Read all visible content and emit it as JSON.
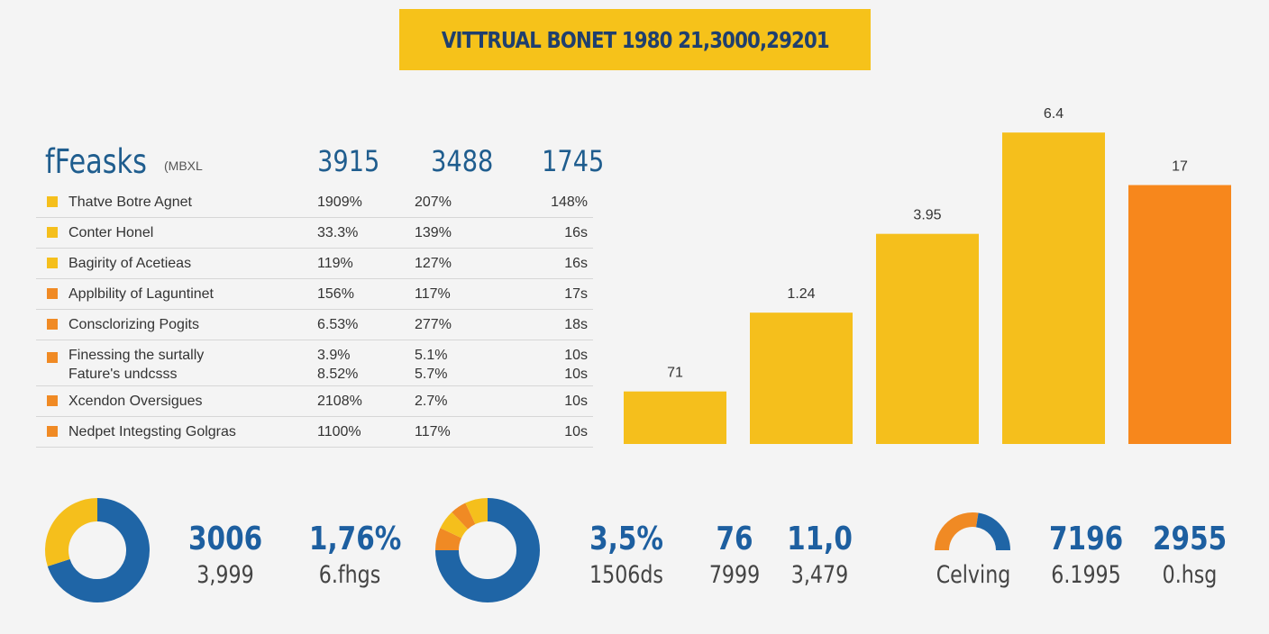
{
  "header": {
    "title": "VITTRUAL BONET 1980 21,3000,29201"
  },
  "table": {
    "title": "fFeasks",
    "subtitle": "(MBXL",
    "columns": [
      "3915",
      "3488",
      "1745"
    ],
    "rows": [
      {
        "label": "Thatve Botre Agnet",
        "v1": "1909%",
        "v2": "207%",
        "v3": "148%",
        "color": "#f5bf1c"
      },
      {
        "label": "Conter Honel",
        "v1": "33.3%",
        "v2": "139%",
        "v3": "16s",
        "color": "#f5bf1c"
      },
      {
        "label": "Bagirity of Acetieas",
        "v1": "119%",
        "v2": "127%",
        "v3": "16s",
        "color": "#f5bf1c"
      },
      {
        "label": "Applbility of Laguntinet",
        "v1": "156%",
        "v2": "117%",
        "v3": "17s",
        "color": "#f08a24"
      },
      {
        "label": "Consclorizing Pogits",
        "v1": "6.53%",
        "v2": "277%",
        "v3": "18s",
        "color": "#f08a24"
      },
      {
        "label": "Finessing the surtally",
        "label2": "Fature's undcsss",
        "v1": "3.9%",
        "v1b": "8.52%",
        "v2": "5.1%",
        "v2b": "5.7%",
        "v3": "10s",
        "v3b": "10s",
        "color": "#f08a24"
      },
      {
        "label": "Xcendon Oversigues",
        "v1": "2108%",
        "v2": "2.7%",
        "v3": "10s",
        "color": "#f08a24"
      },
      {
        "label": "Nedpet Integsting Golgras",
        "v1": "1100%",
        "v2": "117%",
        "v3": "10s",
        "color": "#f08a24"
      }
    ]
  },
  "chart_data": {
    "type": "bar",
    "categories": [
      "",
      "",
      "",
      "",
      ""
    ],
    "value_labels": [
      "71",
      "1.24",
      "3.95",
      "6.4",
      "17"
    ],
    "values": [
      0.7,
      1.75,
      2.8,
      4.15,
      3.45
    ],
    "colors": [
      "#f5bf1c",
      "#f5bf1c",
      "#f5bf1c",
      "#f5bf1c",
      "#f7871c"
    ],
    "title": "",
    "xlabel": "",
    "ylabel": "",
    "ylim": [
      0,
      4.2
    ],
    "grid": false,
    "note": ""
  },
  "donuts": [
    {
      "name": "donut-1",
      "segments": [
        {
          "value": 70,
          "color": "#1f65a6"
        },
        {
          "value": 30,
          "color": "#f5bf1c"
        }
      ]
    },
    {
      "name": "donut-2",
      "segments": [
        {
          "value": 75,
          "color": "#1f65a6"
        },
        {
          "value": 7,
          "color": "#f08a24"
        },
        {
          "value": 6,
          "color": "#f5bf1c"
        },
        {
          "value": 5,
          "color": "#f08a24"
        },
        {
          "value": 7,
          "color": "#f5bf1c"
        }
      ]
    },
    {
      "name": "gauge",
      "segments": [
        {
          "value": 55,
          "color": "#f08a24"
        },
        {
          "value": 45,
          "color": "#1f65a6"
        }
      ]
    }
  ],
  "stats": [
    {
      "big": "3006",
      "small": "3,999"
    },
    {
      "big": "1,76%",
      "small": "6.fhgs"
    },
    {
      "big": "3,5%",
      "small": "1506ds"
    },
    {
      "big": "76",
      "small": "7999"
    },
    {
      "big": "11,0",
      "small": "3,479"
    },
    {
      "big": "",
      "small": "Celving"
    },
    {
      "big": "7196",
      "small": "6.1995"
    },
    {
      "big": "2955",
      "small": "0.hsg"
    }
  ]
}
